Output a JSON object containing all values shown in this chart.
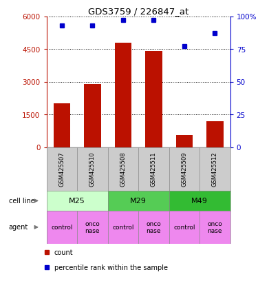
{
  "title": "GDS3759 / 226847_at",
  "samples": [
    "GSM425507",
    "GSM425510",
    "GSM425508",
    "GSM425511",
    "GSM425509",
    "GSM425512"
  ],
  "counts": [
    2000,
    2900,
    4800,
    4400,
    550,
    1200
  ],
  "percentiles": [
    93,
    93,
    97,
    97,
    77,
    87
  ],
  "ylim_left": [
    0,
    6000
  ],
  "ylim_right": [
    0,
    100
  ],
  "yticks_left": [
    0,
    1500,
    3000,
    4500,
    6000
  ],
  "ytick_labels_left": [
    "0",
    "1500",
    "3000",
    "4500",
    "6000"
  ],
  "yticks_right": [
    0,
    25,
    50,
    75,
    100
  ],
  "ytick_labels_right": [
    "0",
    "25",
    "50",
    "75",
    "100%"
  ],
  "bar_color": "#bb1100",
  "dot_color": "#0000cc",
  "cell_lines": [
    {
      "label": "M25",
      "cols": [
        0,
        1
      ],
      "color": "#ccffcc"
    },
    {
      "label": "M29",
      "cols": [
        2,
        3
      ],
      "color": "#55cc55"
    },
    {
      "label": "M49",
      "cols": [
        4,
        5
      ],
      "color": "#33bb33"
    }
  ],
  "agents": [
    {
      "label": "control",
      "col": 0,
      "color": "#ee88ee"
    },
    {
      "label": "onco\nnase",
      "col": 1,
      "color": "#ee88ee"
    },
    {
      "label": "control",
      "col": 2,
      "color": "#ee88ee"
    },
    {
      "label": "onco\nnase",
      "col": 3,
      "color": "#ee88ee"
    },
    {
      "label": "control",
      "col": 4,
      "color": "#ee88ee"
    },
    {
      "label": "onco\nnase",
      "col": 5,
      "color": "#ee88ee"
    }
  ],
  "cell_line_row_label": "cell line",
  "agent_row_label": "agent",
  "legend_count_color": "#bb1100",
  "legend_dot_color": "#0000cc",
  "background_color": "#ffffff",
  "sample_row_color": "#cccccc"
}
